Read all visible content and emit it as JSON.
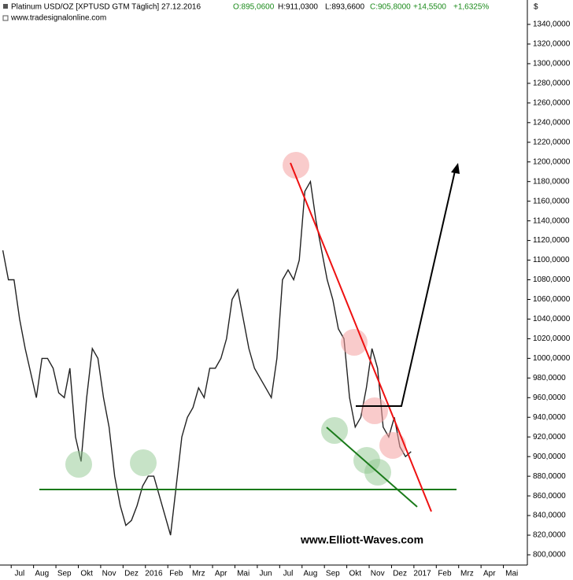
{
  "chart_data": {
    "type": "line",
    "title": "Platinum USD/OZ [XPTUSD GTM  Täglich] 27.12.2016",
    "header_quote": {
      "open": "O:895,0600",
      "high": "H:911,0300",
      "low": "L:893,6600",
      "close": "C:905,8000",
      "change": "+14,5500",
      "change_pct": "+1,6325%"
    },
    "source": "www.tradesignalonline.com",
    "watermark": "www.Elliott-Waves.com",
    "y_unit": "$",
    "categories": [
      null,
      null,
      "Jul",
      null,
      null,
      null,
      "Aug",
      null,
      null,
      null,
      "Sep",
      null,
      null,
      null,
      "Okt",
      null,
      null,
      null,
      "Nov",
      null,
      null,
      null,
      "Dez",
      null,
      null,
      null,
      "2016",
      null,
      null,
      null,
      "Feb",
      null,
      null,
      null,
      "Mrz",
      null,
      null,
      null,
      "Apr",
      null,
      null,
      null,
      "Mai",
      null,
      null,
      null,
      "Jun",
      null,
      null,
      null,
      "Jul",
      null,
      null,
      null,
      "Aug",
      null,
      null,
      null,
      "Sep",
      null,
      null,
      null,
      "Okt",
      null,
      null,
      null,
      "Nov",
      null,
      null,
      null,
      "Dez",
      null,
      null,
      null,
      "2017",
      null,
      null,
      null,
      "Feb",
      null,
      null,
      null,
      "Mrz",
      null,
      null,
      null,
      "Apr",
      null,
      null,
      null,
      "Mai",
      null,
      null,
      null
    ],
    "series": [
      {
        "name": "Platinum",
        "color": "#222222",
        "values": [
          1110,
          1080,
          1080,
          1040,
          1010,
          985,
          960,
          1000,
          1000,
          990,
          965,
          960,
          990,
          920,
          895,
          960,
          1010,
          1000,
          960,
          930,
          880,
          850,
          830,
          835,
          850,
          870,
          880,
          880,
          860,
          840,
          820,
          870,
          920,
          940,
          950,
          970,
          960,
          990,
          990,
          1000,
          1020,
          1060,
          1070,
          1040,
          1010,
          990,
          980,
          970,
          960,
          1000,
          1080,
          1090,
          1080,
          1100,
          1170,
          1180,
          1140,
          1110,
          1080,
          1060,
          1030,
          1020,
          960,
          930,
          940,
          970,
          1010,
          990,
          930,
          920,
          940,
          910,
          900,
          905,
          null,
          null,
          null,
          null,
          null,
          null,
          null,
          null,
          null,
          null,
          null,
          null,
          null,
          null,
          null,
          null,
          null,
          null,
          null,
          null
        ]
      }
    ],
    "ylim": [
      790,
      1350
    ],
    "yticks": [
      {
        "value": 800,
        "label": "800,0000"
      },
      {
        "value": 820,
        "label": "820,0000"
      },
      {
        "value": 840,
        "label": "840,0000"
      },
      {
        "value": 860,
        "label": "860,0000"
      },
      {
        "value": 880,
        "label": "880,0000"
      },
      {
        "value": 900,
        "label": "900,0000"
      },
      {
        "value": 920,
        "label": "920,0000"
      },
      {
        "value": 940,
        "label": "940,0000"
      },
      {
        "value": 960,
        "label": "960,0000"
      },
      {
        "value": 980,
        "label": "980,0000"
      },
      {
        "value": 1000,
        "label": "1000,0000"
      },
      {
        "value": 1020,
        "label": "1020,0000"
      },
      {
        "value": 1040,
        "label": "1040,0000"
      },
      {
        "value": 1060,
        "label": "1060,0000"
      },
      {
        "value": 1080,
        "label": "1080,0000"
      },
      {
        "value": 1100,
        "label": "1100,0000"
      },
      {
        "value": 1120,
        "label": "1120,0000"
      },
      {
        "value": 1140,
        "label": "1140,0000"
      },
      {
        "value": 1160,
        "label": "1160,0000"
      },
      {
        "value": 1180,
        "label": "1180,0000"
      },
      {
        "value": 1200,
        "label": "1200,0000"
      },
      {
        "value": 1220,
        "label": "1220,0000"
      },
      {
        "value": 1240,
        "label": "1240,0000"
      },
      {
        "value": 1260,
        "label": "1260,0000"
      },
      {
        "value": 1280,
        "label": "1280,0000"
      },
      {
        "value": 1300,
        "label": "1300,0000"
      },
      {
        "value": 1320,
        "label": "1320,0000"
      },
      {
        "value": 1340,
        "label": "1340,0000"
      }
    ],
    "grid": false
  }
}
